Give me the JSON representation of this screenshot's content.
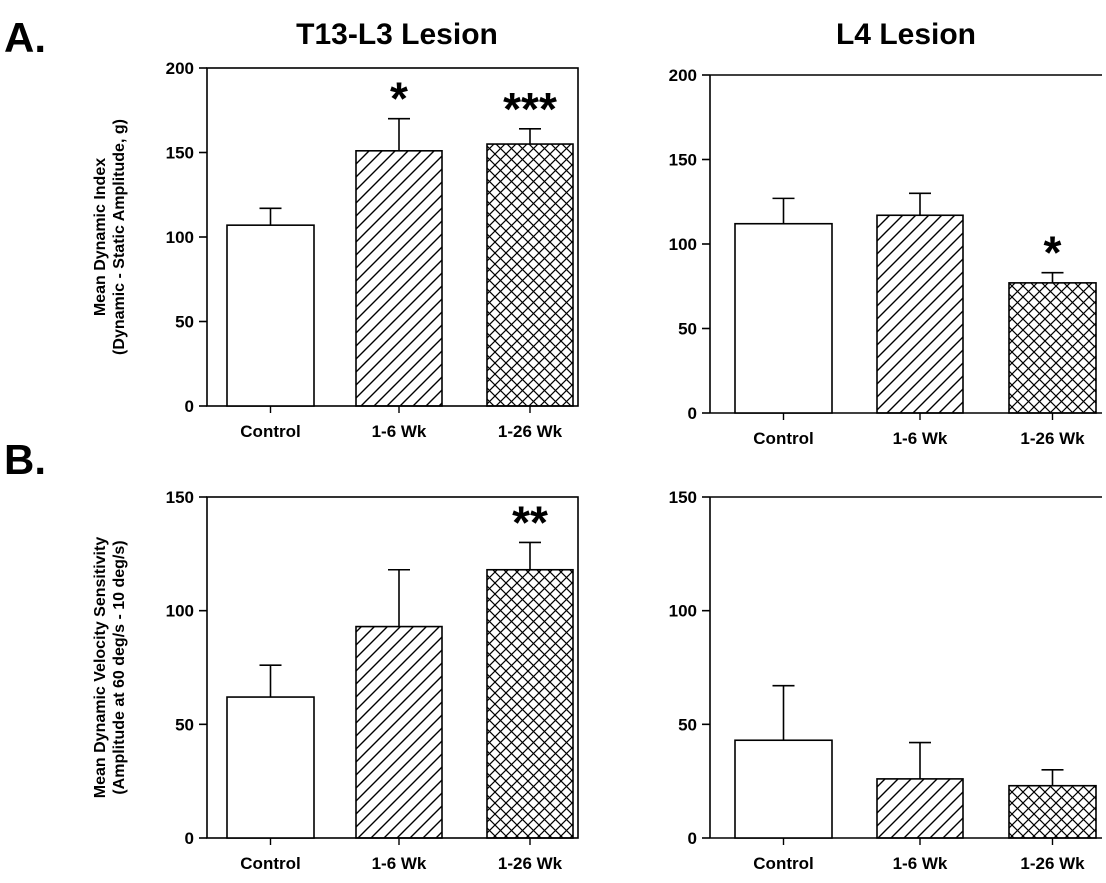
{
  "figure": {
    "column_titles": [
      "T13-L3 Lesion",
      "L4 Lesion"
    ],
    "row_labels": [
      "A.",
      "B."
    ]
  },
  "chart_data": [
    {
      "type": "bar",
      "title": "T13-L3 Lesion",
      "panel": "A.",
      "categories": [
        "Control",
        "1-6 Wk",
        "1-26 Wk"
      ],
      "values": [
        107,
        151,
        155
      ],
      "errors": [
        10,
        19,
        9
      ],
      "patterns": [
        "none",
        "diagonal",
        "crosshatch"
      ],
      "significance": [
        "",
        "*",
        "***"
      ],
      "ylabel_lines": [
        "Mean Dynamic Index",
        "(Dynamic - Static Amplitude, g)"
      ],
      "ylim": [
        0,
        200
      ],
      "yticks": [
        0,
        50,
        100,
        150,
        200
      ]
    },
    {
      "type": "bar",
      "title": "L4 Lesion",
      "panel": "A.",
      "categories": [
        "Control",
        "1-6 Wk",
        "1-26 Wk"
      ],
      "values": [
        112,
        117,
        77
      ],
      "errors": [
        15,
        13,
        6
      ],
      "patterns": [
        "none",
        "diagonal",
        "crosshatch"
      ],
      "significance": [
        "",
        "",
        "*"
      ],
      "ylabel_lines": [],
      "ylim": [
        0,
        200
      ],
      "yticks": [
        0,
        50,
        100,
        150,
        200
      ]
    },
    {
      "type": "bar",
      "panel": "B.",
      "categories": [
        "Control",
        "1-6 Wk",
        "1-26 Wk"
      ],
      "values": [
        62,
        93,
        118
      ],
      "errors": [
        14,
        25,
        12
      ],
      "patterns": [
        "none",
        "diagonal",
        "crosshatch"
      ],
      "significance": [
        "",
        "",
        "**"
      ],
      "ylabel_lines": [
        "Mean Dynamic Velocity Sensitivity",
        "(Amplitude at 60 deg/s - 10 deg/s)"
      ],
      "ylim": [
        0,
        150
      ],
      "yticks": [
        0,
        50,
        100,
        150
      ]
    },
    {
      "type": "bar",
      "panel": "B.",
      "categories": [
        "Control",
        "1-6 Wk",
        "1-26 Wk"
      ],
      "values": [
        43,
        26,
        23
      ],
      "errors": [
        24,
        16,
        7
      ],
      "patterns": [
        "none",
        "diagonal",
        "crosshatch"
      ],
      "significance": [
        "",
        "",
        ""
      ],
      "ylabel_lines": [],
      "ylim": [
        0,
        150
      ],
      "yticks": [
        0,
        50,
        100,
        150
      ]
    }
  ]
}
